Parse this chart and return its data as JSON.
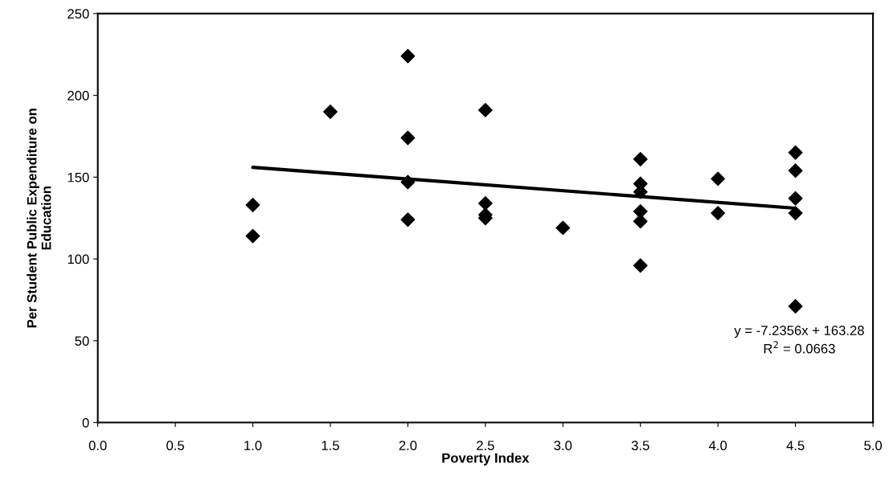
{
  "chart_data": {
    "type": "scatter",
    "xlabel": "Poverty Index",
    "ylabel": "Per Student Public Expenditure on\nEducation",
    "xlim": [
      0,
      5
    ],
    "xticks": [
      {
        "value": 0,
        "label": "0.0"
      },
      {
        "value": 0.5,
        "label": "0.5"
      },
      {
        "value": 1,
        "label": "1.0"
      },
      {
        "value": 1.5,
        "label": "1.5"
      },
      {
        "value": 2,
        "label": "2.0"
      },
      {
        "value": 2.5,
        "label": "2.5"
      },
      {
        "value": 3,
        "label": "3.0"
      },
      {
        "value": 3.5,
        "label": "3.5"
      },
      {
        "value": 4,
        "label": "4.0"
      },
      {
        "value": 4.5,
        "label": "4.5"
      },
      {
        "value": 5,
        "label": "5.0"
      }
    ],
    "ylim": [
      0,
      250
    ],
    "yticks": [
      0,
      50,
      100,
      150,
      200,
      250
    ],
    "grid": false,
    "marker": "diamond",
    "series": [
      {
        "color": "#000000",
        "x": [
          1,
          1,
          1.5,
          2,
          2,
          2,
          2,
          2.5,
          2.5,
          2.5,
          2.5,
          3,
          3.5,
          3.5,
          3.5,
          3.5,
          3.5,
          3.5,
          4,
          4,
          4.5,
          4.5,
          4.5,
          4.5,
          4.5
        ],
        "values": [
          133,
          114,
          190,
          224,
          174,
          147,
          124,
          191,
          134,
          127,
          125,
          119,
          161,
          146,
          141,
          129,
          123,
          96,
          149,
          128,
          165,
          154,
          137,
          128,
          71
        ]
      },
      {
        "type": "line",
        "marker": "none",
        "color": "#000000",
        "x": [
          1,
          4.5
        ],
        "values": [
          156,
          131
        ]
      }
    ],
    "annotations": [
      "y = -7.2356x + 163.28\nR$^{2}$ = 0.0663"
    ]
  }
}
